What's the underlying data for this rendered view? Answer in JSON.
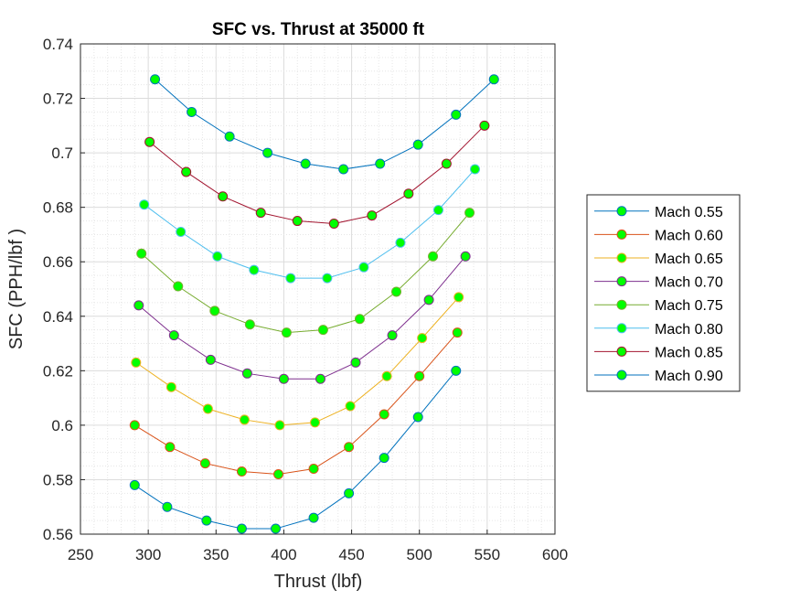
{
  "chart_data": {
    "type": "line",
    "title": "SFC vs. Thrust at 35000 ft",
    "xlabel": "Thrust (lbf)",
    "ylabel": "SFC (PPH/lbf )",
    "xlim": [
      250,
      600
    ],
    "ylim": [
      0.56,
      0.74
    ],
    "xticks": [
      250,
      300,
      350,
      400,
      450,
      500,
      550,
      600
    ],
    "xtick_labels": [
      "250",
      "300",
      "350",
      "400",
      "450",
      "500",
      "550",
      "600"
    ],
    "yticks": [
      0.56,
      0.58,
      0.6,
      0.62,
      0.64,
      0.66,
      0.68,
      0.7,
      0.72,
      0.74
    ],
    "ytick_labels": [
      "0.56",
      "0.58",
      "0.6",
      "0.62",
      "0.64",
      "0.66",
      "0.68",
      "0.7",
      "0.72",
      "0.74"
    ],
    "grid": "major and minor",
    "legend_position": "outside-right",
    "series": [
      {
        "name": "Mach 0.55",
        "color": "#0072BD",
        "marker_face": "#00FF00",
        "x": [
          290,
          314,
          343,
          369,
          394,
          422,
          448,
          474,
          499,
          527
        ],
        "y": [
          0.578,
          0.57,
          0.565,
          0.562,
          0.562,
          0.566,
          0.575,
          0.588,
          0.603,
          0.62
        ]
      },
      {
        "name": "Mach 0.60",
        "color": "#D95319",
        "marker_face": "#00FF00",
        "x": [
          290,
          316,
          342,
          369,
          396,
          422,
          448,
          474,
          500,
          528
        ],
        "y": [
          0.6,
          0.592,
          0.586,
          0.583,
          0.582,
          0.584,
          0.592,
          0.604,
          0.618,
          0.634
        ]
      },
      {
        "name": "Mach 0.65",
        "color": "#EDB120",
        "marker_face": "#00FF00",
        "x": [
          291,
          317,
          344,
          371,
          397,
          423,
          449,
          476,
          502,
          529
        ],
        "y": [
          0.623,
          0.614,
          0.606,
          0.602,
          0.6,
          0.601,
          0.607,
          0.618,
          0.632,
          0.647
        ]
      },
      {
        "name": "Mach 0.70",
        "color": "#7E2F8E",
        "marker_face": "#00FF00",
        "x": [
          293,
          319,
          346,
          373,
          400,
          427,
          453,
          480,
          507,
          534
        ],
        "y": [
          0.644,
          0.633,
          0.624,
          0.619,
          0.617,
          0.617,
          0.623,
          0.633,
          0.646,
          0.662
        ]
      },
      {
        "name": "Mach 0.75",
        "color": "#77AC30",
        "marker_face": "#00FF00",
        "x": [
          295,
          322,
          349,
          375,
          402,
          429,
          456,
          483,
          510,
          537
        ],
        "y": [
          0.663,
          0.651,
          0.642,
          0.637,
          0.634,
          0.635,
          0.639,
          0.649,
          0.662,
          0.678
        ]
      },
      {
        "name": "Mach 0.80",
        "color": "#4DBEEE",
        "marker_face": "#00FF00",
        "x": [
          297,
          324,
          351,
          378,
          405,
          432,
          459,
          486,
          514,
          541
        ],
        "y": [
          0.681,
          0.671,
          0.662,
          0.657,
          0.654,
          0.654,
          0.658,
          0.667,
          0.679,
          0.694
        ]
      },
      {
        "name": "Mach 0.85",
        "color": "#A2142F",
        "marker_face": "#00FF00",
        "x": [
          301,
          328,
          355,
          383,
          410,
          437,
          465,
          492,
          520,
          548
        ],
        "y": [
          0.704,
          0.693,
          0.684,
          0.678,
          0.675,
          0.674,
          0.677,
          0.685,
          0.696,
          0.71
        ]
      },
      {
        "name": "Mach 0.90",
        "color": "#0072BD",
        "marker_face": "#00FF00",
        "x": [
          305,
          332,
          360,
          388,
          416,
          444,
          471,
          499,
          527,
          555
        ],
        "y": [
          0.727,
          0.715,
          0.706,
          0.7,
          0.696,
          0.694,
          0.696,
          0.703,
          0.714,
          0.727
        ]
      }
    ]
  }
}
